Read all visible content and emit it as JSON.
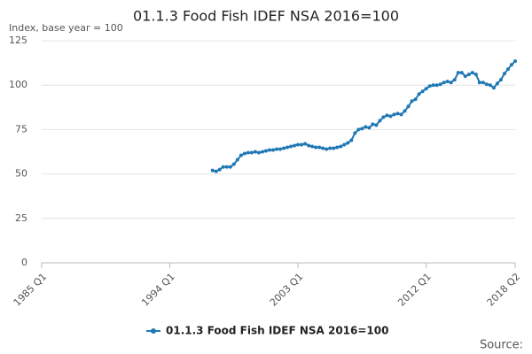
{
  "chart_data": {
    "type": "line",
    "title": "01.1.3 Food Fish IDEF NSA 2016=100",
    "subtitle": "Index, base year = 100",
    "source": "Source:",
    "categories": [
      "1985 Q1",
      null,
      null,
      null,
      null,
      null,
      null,
      null,
      null,
      null,
      null,
      null,
      null,
      null,
      null,
      null,
      null,
      null,
      null,
      null,
      null,
      null,
      null,
      null,
      null,
      null,
      null,
      null,
      null,
      null,
      null,
      null,
      null,
      null,
      null,
      null,
      "1994 Q1",
      null,
      null,
      null,
      null,
      null,
      null,
      null,
      null,
      null,
      null,
      null,
      null,
      null,
      null,
      null,
      null,
      null,
      null,
      null,
      null,
      null,
      null,
      null,
      null,
      null,
      null,
      null,
      null,
      null,
      null,
      null,
      null,
      null,
      null,
      null,
      "2003 Q1",
      null,
      null,
      null,
      null,
      null,
      null,
      null,
      null,
      null,
      null,
      null,
      null,
      null,
      null,
      null,
      null,
      null,
      null,
      null,
      null,
      null,
      null,
      null,
      null,
      null,
      null,
      null,
      null,
      null,
      null,
      null,
      null,
      null,
      null,
      null,
      "2012 Q1",
      null,
      null,
      null,
      null,
      null,
      null,
      null,
      null,
      null,
      null,
      null,
      null,
      null,
      null,
      null,
      null,
      null,
      null,
      null,
      null,
      null,
      null,
      null,
      null,
      "2018 Q2"
    ],
    "series": [
      {
        "name": "01.1.3 Food Fish IDEF NSA 2016=100",
        "color": "#1f78b4",
        "values": [
          null,
          null,
          null,
          null,
          null,
          null,
          null,
          null,
          null,
          null,
          null,
          null,
          null,
          null,
          null,
          null,
          null,
          null,
          null,
          null,
          null,
          null,
          null,
          null,
          null,
          null,
          null,
          null,
          null,
          null,
          null,
          null,
          null,
          null,
          null,
          null,
          null,
          null,
          null,
          null,
          null,
          null,
          null,
          null,
          null,
          null,
          null,
          null,
          52,
          51.5,
          52.5,
          54,
          54,
          54,
          55.5,
          58,
          60.5,
          61.5,
          62,
          62,
          62.5,
          62,
          62.5,
          63,
          63.5,
          63.5,
          64,
          64,
          64.5,
          65,
          65.5,
          66,
          66.5,
          66.5,
          67,
          66,
          65.5,
          65,
          65,
          64.5,
          64,
          64.5,
          64.5,
          65,
          65.5,
          66.5,
          67.5,
          69,
          73,
          75,
          75.5,
          76.5,
          76,
          78,
          77.5,
          80,
          82,
          83,
          82.5,
          83.5,
          84,
          83.5,
          85.5,
          88,
          91,
          92,
          95,
          96.5,
          98,
          99.5,
          100,
          100,
          100.5,
          101.5,
          102,
          101.5,
          103,
          107,
          107,
          105,
          106,
          107,
          106,
          101.5,
          101.5,
          100.5,
          100,
          98.5,
          101,
          103,
          106.5,
          109,
          111.5,
          113.5
        ]
      }
    ],
    "ylim": [
      0,
      125
    ],
    "yticks": [
      0,
      25,
      50,
      75,
      100,
      125
    ],
    "grid": true,
    "legend": "bottom"
  }
}
